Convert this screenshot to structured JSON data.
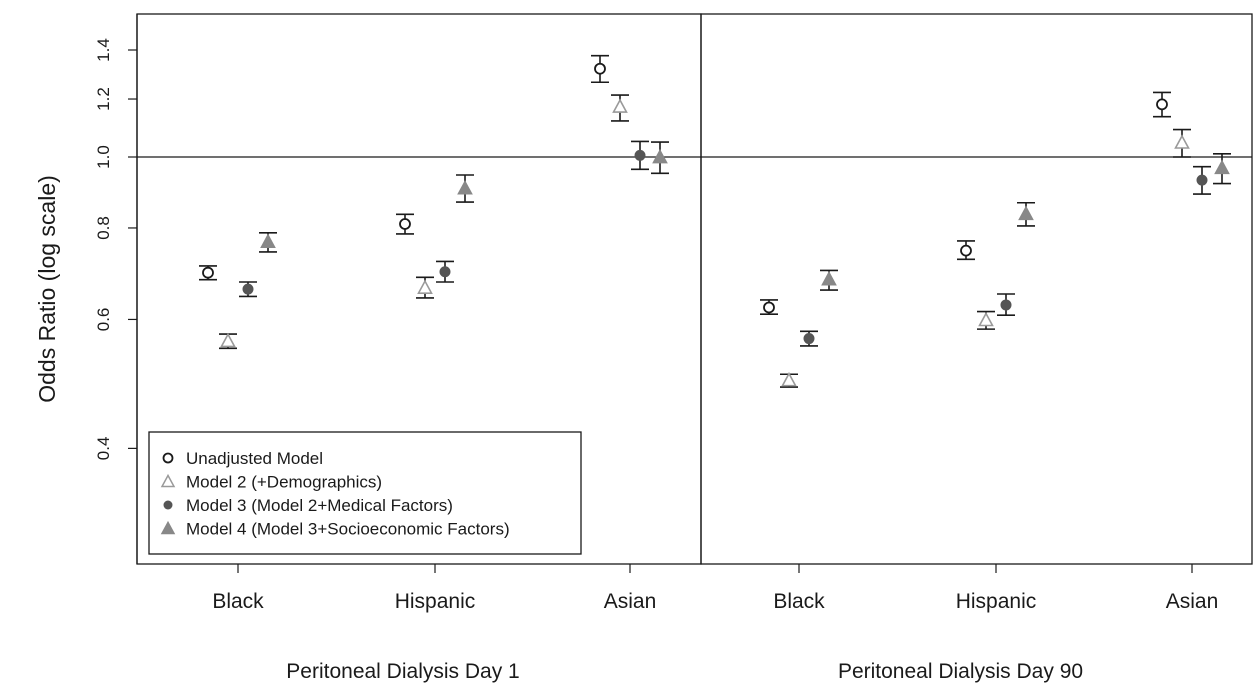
{
  "chart_data": {
    "type": "scatter",
    "ylabel": "Odds Ratio (log scale)",
    "y_scale": "log",
    "ylim": [
      0.35,
      1.45
    ],
    "yticks": [
      0.4,
      0.6,
      0.8,
      1.0,
      1.2,
      1.4
    ],
    "ytick_labels": [
      "0.4",
      "0.6",
      "0.8",
      "1.0",
      "1.2",
      "1.4"
    ],
    "reference_line": 1.0,
    "categories": [
      "Black",
      "Hispanic",
      "Asian"
    ],
    "legend_placement": "bottom-left",
    "series": [
      {
        "name": "Unadjusted Model",
        "marker": "open-circle",
        "color": "#1a1a1a"
      },
      {
        "name": "Model 2 (+Demographics)",
        "marker": "open-triangle",
        "color": "#9a9a9a"
      },
      {
        "name": "Model 3 (Model 2+Medical Factors)",
        "marker": "filled-circle",
        "color": "#555555"
      },
      {
        "name": "Model 4 (Model 3+Socioeconomic Factors)",
        "marker": "filled-triangle",
        "color": "#888888"
      }
    ],
    "panels": [
      {
        "title": "Peritoneal Dialysis Day 1",
        "points": [
          [
            {
              "est": 0.695,
              "lo": 0.68,
              "hi": 0.71
            },
            {
              "est": 0.56,
              "lo": 0.548,
              "hi": 0.573
            },
            {
              "est": 0.66,
              "lo": 0.645,
              "hi": 0.675
            },
            {
              "est": 0.765,
              "lo": 0.742,
              "hi": 0.788
            }
          ],
          [
            {
              "est": 0.81,
              "lo": 0.785,
              "hi": 0.835
            },
            {
              "est": 0.662,
              "lo": 0.642,
              "hi": 0.685
            },
            {
              "est": 0.697,
              "lo": 0.675,
              "hi": 0.72
            },
            {
              "est": 0.905,
              "lo": 0.868,
              "hi": 0.945
            }
          ],
          [
            {
              "est": 1.32,
              "lo": 1.265,
              "hi": 1.375
            },
            {
              "est": 1.17,
              "lo": 1.12,
              "hi": 1.215
            },
            {
              "est": 1.005,
              "lo": 0.962,
              "hi": 1.05
            },
            {
              "est": 0.998,
              "lo": 0.95,
              "hi": 1.048
            }
          ]
        ]
      },
      {
        "title": "Peritoneal Dialysis Day 90",
        "points": [
          [
            {
              "est": 0.623,
              "lo": 0.61,
              "hi": 0.638
            },
            {
              "est": 0.495,
              "lo": 0.485,
              "hi": 0.505
            },
            {
              "est": 0.565,
              "lo": 0.552,
              "hi": 0.578
            },
            {
              "est": 0.68,
              "lo": 0.658,
              "hi": 0.7
            }
          ],
          [
            {
              "est": 0.745,
              "lo": 0.725,
              "hi": 0.768
            },
            {
              "est": 0.598,
              "lo": 0.582,
              "hi": 0.615
            },
            {
              "est": 0.628,
              "lo": 0.608,
              "hi": 0.65
            },
            {
              "est": 0.835,
              "lo": 0.805,
              "hi": 0.866
            }
          ],
          [
            {
              "est": 1.18,
              "lo": 1.135,
              "hi": 1.225
            },
            {
              "est": 1.045,
              "lo": 1.0,
              "hi": 1.09
            },
            {
              "est": 0.93,
              "lo": 0.89,
              "hi": 0.97
            },
            {
              "est": 0.965,
              "lo": 0.92,
              "hi": 1.01
            }
          ]
        ]
      }
    ]
  }
}
